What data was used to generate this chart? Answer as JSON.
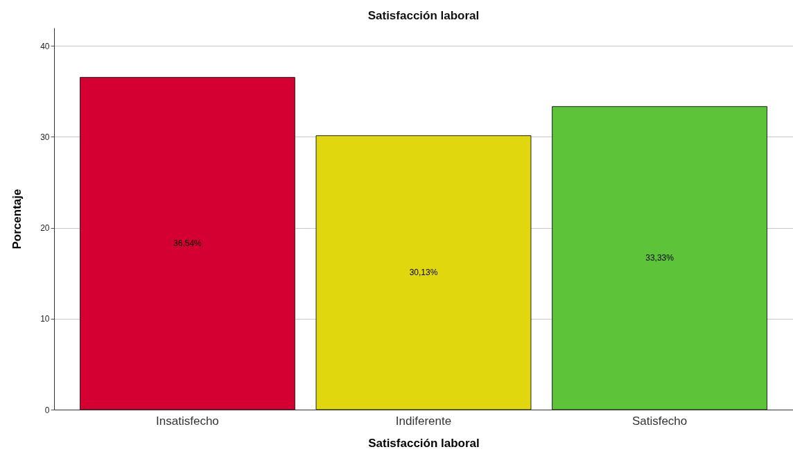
{
  "chart_data": {
    "type": "bar",
    "title": "Satisfacción laboral",
    "xlabel": "Satisfacción laboral",
    "ylabel": "Porcentaje",
    "categories": [
      "Insatisfecho",
      "Indiferente",
      "Satisfecho"
    ],
    "values": [
      36.54,
      30.13,
      33.33
    ],
    "colors": [
      "#d50032",
      "#e1d70f",
      "#5dc43a"
    ],
    "value_labels": [
      "36,54%",
      "30,13%",
      "33,33%"
    ],
    "ylim": [
      0,
      42
    ],
    "yticks": [
      0,
      10,
      20,
      30,
      40
    ],
    "grid": "y"
  }
}
